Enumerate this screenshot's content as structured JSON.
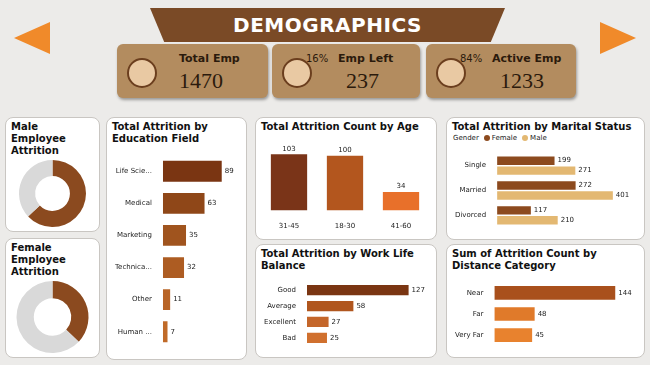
{
  "title": "DEMOGRAPHICS",
  "kpis": [
    {
      "label": "Total Emp",
      "value": 1470
    },
    {
      "label": "Emp Left",
      "value": 237,
      "share": "16%"
    },
    {
      "label": "Active Emp",
      "value": 1233,
      "share": "84%"
    }
  ],
  "chart_data": [
    {
      "type": "doughnut",
      "title": "Male Employee Attrition",
      "values": [
        63,
        37
      ],
      "colors": [
        "#8b4a1f",
        "#d9d9d9"
      ]
    },
    {
      "type": "doughnut",
      "title": "Female Employee Attrition",
      "values": [
        37,
        63
      ],
      "colors": [
        "#8b4a1f",
        "#d9d9d9"
      ]
    },
    {
      "type": "bar",
      "title": "Total Attrition by Education Field",
      "orientation": "horizontal",
      "categories": [
        "Life Scie...",
        "Medical",
        "Marketing",
        "Technica...",
        "Other",
        "Human ..."
      ],
      "values": [
        89,
        63,
        35,
        32,
        11,
        7
      ],
      "colors": [
        "#7a3512",
        "#8f4718",
        "#a0541e",
        "#ad5c22",
        "#b86426",
        "#c06a28"
      ],
      "xlim": [
        0,
        100
      ],
      "grid": false,
      "data_labels": true,
      "tick_labels": "y"
    },
    {
      "type": "bar",
      "title": "Total Attrition Count by Age",
      "categories": [
        "31-45",
        "18-30",
        "41-60"
      ],
      "values": [
        103,
        100,
        34
      ],
      "colors": [
        "#7a3418",
        "#b3561e",
        "#e8702a"
      ],
      "ylim": [
        0,
        118
      ],
      "grid": false,
      "data_labels": true,
      "tick_labels": "x"
    },
    {
      "type": "bar",
      "title": "Total Attrition by Marital Status",
      "orientation": "horizontal",
      "categories": [
        "Single",
        "Married",
        "Divorced"
      ],
      "series": [
        {
          "name": "Female",
          "color": "#8c4a1e",
          "values": [
            199,
            272,
            117
          ]
        },
        {
          "name": "Male",
          "color": "#e3b872",
          "values": [
            271,
            401,
            210
          ]
        }
      ],
      "legend": "top",
      "legend_title": "Gender",
      "xlim": [
        0,
        450
      ],
      "grid": false,
      "data_labels": true,
      "tick_labels": "y"
    },
    {
      "type": "bar",
      "title": "Total Attrition by Work Life Balance",
      "orientation": "horizontal",
      "categories": [
        "Good",
        "Average",
        "Excellent",
        "Bad"
      ],
      "values": [
        127,
        58,
        27,
        25
      ],
      "colors": [
        "#7a3512",
        "#b0561e",
        "#c4662a",
        "#d0702e"
      ],
      "xlim": [
        0,
        140
      ],
      "grid": false,
      "data_labels": true,
      "tick_labels": "y"
    },
    {
      "type": "bar",
      "title": "Sum of Attrition Count by Distance Category",
      "orientation": "horizontal",
      "categories": [
        "Near",
        "Far",
        "Very Far"
      ],
      "values": [
        144,
        48,
        45
      ],
      "colors": [
        "#a9501c",
        "#e07a2a",
        "#e8822e"
      ],
      "xlim": [
        0,
        158
      ],
      "grid": false,
      "data_labels": true,
      "tick_labels": "y"
    }
  ]
}
